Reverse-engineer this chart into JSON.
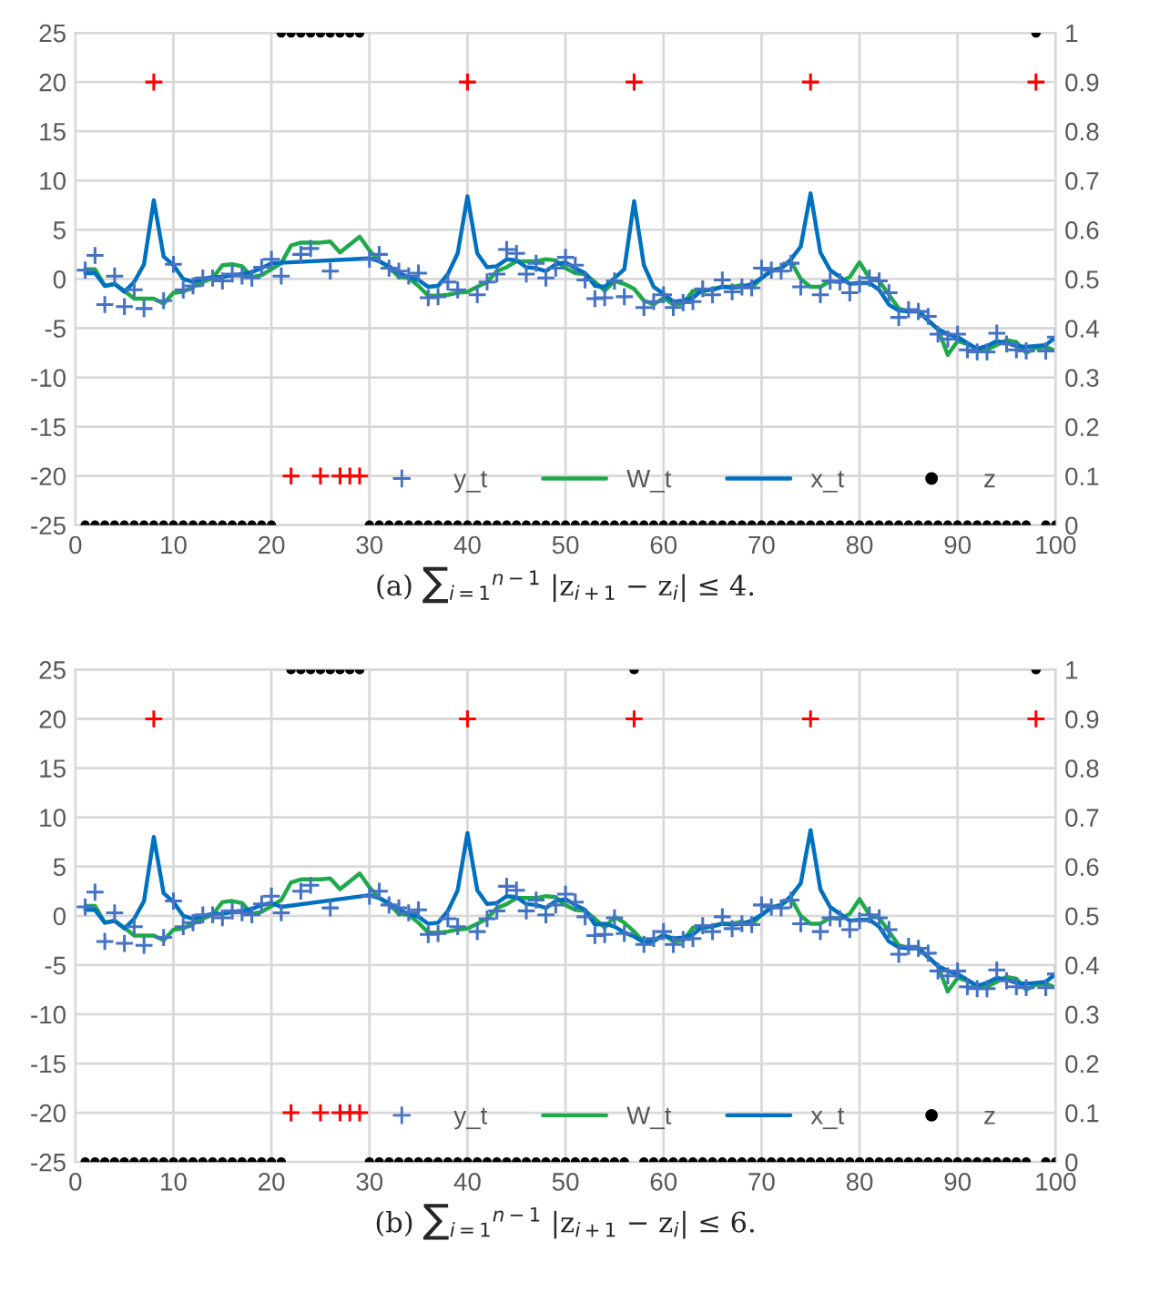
{
  "chart_data": [
    {
      "type": "line",
      "title": "(a) ∑$_{i=1}$$^{n−1}$ |z$_{i+1}$ − z$_{i}$| ≤ 4.",
      "x": [
        1,
        2,
        3,
        4,
        5,
        6,
        7,
        8,
        9,
        10,
        11,
        12,
        13,
        14,
        15,
        16,
        17,
        18,
        19,
        20,
        21,
        22,
        23,
        24,
        25,
        26,
        27,
        28,
        29,
        30,
        31,
        32,
        33,
        34,
        35,
        36,
        37,
        38,
        39,
        40,
        41,
        42,
        43,
        44,
        45,
        46,
        47,
        48,
        49,
        50,
        51,
        52,
        53,
        54,
        55,
        56,
        57,
        58,
        59,
        60,
        61,
        62,
        63,
        64,
        65,
        66,
        67,
        68,
        69,
        70,
        71,
        72,
        73,
        74,
        75,
        76,
        77,
        78,
        79,
        80,
        81,
        82,
        83,
        84,
        85,
        86,
        87,
        88,
        89,
        90,
        91,
        92,
        93,
        94,
        95,
        96,
        97,
        98,
        99,
        100
      ],
      "xlim": [
        0,
        100
      ],
      "xticks": [
        0,
        10,
        20,
        30,
        40,
        50,
        60,
        70,
        80,
        90,
        100
      ],
      "ylim": [
        -25,
        25
      ],
      "yticks": [
        -25,
        -20,
        -15,
        -10,
        -5,
        0,
        5,
        10,
        15,
        20,
        25
      ],
      "y2lim": [
        0,
        1
      ],
      "y2ticks": [
        0,
        0.1,
        0.2,
        0.3,
        0.4,
        0.5,
        0.6,
        0.7,
        0.8,
        0.9,
        1
      ],
      "grid": true,
      "legend": "bottom",
      "series": [
        {
          "name": "y_t",
          "type": "scatter",
          "marker": "cross",
          "color": "#4472c4",
          "values": [
            0.9,
            2.4,
            -2.6,
            0.3,
            -2.8,
            -1.1,
            -3.0,
            null,
            -2.2,
            1.5,
            -1.1,
            -0.7,
            0.1,
            0.1,
            -0.2,
            0.5,
            0.3,
            0.1,
            1.2,
            2.0,
            0.3,
            null,
            2.5,
            3.1,
            null,
            0.8,
            null,
            null,
            null,
            2.0,
            2.5,
            1.1,
            0.8,
            0.3,
            0.6,
            -1.9,
            -1.8,
            -0.3,
            -1.1,
            null,
            -1.6,
            -0.3,
            0.5,
            3.0,
            2.6,
            0.5,
            1.6,
            0.1,
            1.1,
            2.2,
            1.4,
            -0.1,
            -2.0,
            -1.9,
            -0.2,
            -1.8,
            null,
            -2.9,
            -2.3,
            -1.6,
            -2.9,
            -2.4,
            -2.3,
            -1.0,
            -1.6,
            -0.1,
            -1.3,
            -0.8,
            -0.9,
            1.1,
            0.9,
            0.8,
            1.6,
            -0.8,
            null,
            -1.6,
            -0.2,
            -0.3,
            -1.4,
            -0.5,
            0.1,
            -0.2,
            -1.4,
            -3.9,
            -3.1,
            -3.3,
            -3.8,
            -5.6,
            -6.1,
            -5.6,
            -7.2,
            -7.4,
            -7.4,
            -5.5,
            -6.6,
            -7.2,
            -7.3,
            null,
            -7.3,
            -5.9
          ]
        },
        {
          "name": "W_t",
          "color": "#1faa4a",
          "values": [
            1.0,
            1.0,
            -0.7,
            -0.5,
            -1.2,
            -2.0,
            -2.0,
            -2.0,
            -2.5,
            -1.4,
            -1.3,
            -0.8,
            -0.3,
            0.1,
            1.4,
            1.5,
            1.3,
            0.2,
            0.4,
            1.0,
            1.6,
            3.4,
            3.7,
            3.7,
            3.7,
            3.8,
            2.7,
            3.5,
            4.3,
            2.9,
            1.8,
            1.2,
            0.2,
            0.1,
            -0.7,
            -1.7,
            -1.7,
            -1.6,
            -1.4,
            -1.3,
            -0.8,
            -0.3,
            0.8,
            1.2,
            1.8,
            1.8,
            1.8,
            2.0,
            1.9,
            1.1,
            0.6,
            0.5,
            -0.3,
            -1.2,
            -0.2,
            -0.5,
            -1.0,
            -2.2,
            -2.6,
            -1.9,
            -2.6,
            -2.5,
            -1.2,
            -1.3,
            -1.0,
            -0.8,
            -0.8,
            -0.6,
            -0.9,
            0.1,
            0.9,
            1.1,
            1.8,
            0.0,
            -0.8,
            -0.8,
            -0.2,
            -0.3,
            0.2,
            1.7,
            0.1,
            -0.2,
            -1.6,
            -3.0,
            -3.3,
            -3.2,
            -4.2,
            -5.1,
            -7.7,
            -6.3,
            -6.6,
            -7.1,
            -7.2,
            -6.7,
            -6.2,
            -6.4,
            -7.5,
            -7.0,
            -6.9,
            -7.3
          ]
        },
        {
          "name": "x_t",
          "color": "#0070c0",
          "values": [
            0.6,
            0.6,
            -0.7,
            -0.5,
            -1.3,
            -0.3,
            1.5,
            8.0,
            2.3,
            1.4,
            0.0,
            -0.3,
            0.0,
            0.2,
            0.2,
            0.4,
            0.5,
            0.7,
            1.1,
            1.6,
            null,
            null,
            null,
            null,
            null,
            null,
            null,
            null,
            null,
            2.1,
            1.8,
            1.3,
            0.6,
            0.2,
            -0.1,
            -0.8,
            -0.7,
            0.5,
            2.6,
            8.4,
            2.6,
            1.2,
            1.3,
            2.0,
            1.9,
            1.2,
            1.1,
            0.8,
            1.5,
            1.7,
            1.1,
            0.6,
            -0.7,
            -0.8,
            0.1,
            1.0,
            7.9,
            1.4,
            -0.8,
            -1.5,
            -2.3,
            -2.2,
            -1.9,
            -1.1,
            -1.1,
            -0.8,
            -0.9,
            -0.8,
            -0.5,
            0.1,
            0.8,
            1.1,
            2.0,
            3.3,
            8.7,
            2.7,
            0.9,
            0.2,
            -0.5,
            -0.4,
            -0.4,
            -1.1,
            -2.6,
            -3.2,
            -3.3,
            -3.3,
            -4.2,
            -5.1,
            -5.6,
            -5.9,
            -6.5,
            -7.1,
            -6.8,
            -6.3,
            -6.5,
            -6.8,
            -6.9,
            -6.8,
            -6.7,
            -5.9
          ]
        },
        {
          "name": "z",
          "type": "scatter",
          "marker": "circle",
          "axis": "y2",
          "color": "#000000",
          "values": [
            0,
            0,
            0,
            0,
            0,
            0,
            0,
            0,
            0,
            0,
            0,
            0,
            0,
            0,
            0,
            0,
            0,
            0,
            0,
            0,
            1,
            1,
            1,
            1,
            1,
            1,
            1,
            1,
            1,
            0,
            0,
            0,
            0,
            0,
            0,
            0,
            0,
            0,
            0,
            0,
            0,
            0,
            0,
            0,
            0,
            0,
            0,
            0,
            0,
            0,
            0,
            0,
            0,
            0,
            0,
            0,
            0,
            0,
            0,
            0,
            0,
            0,
            0,
            0,
            0,
            0,
            0,
            0,
            0,
            0,
            0,
            0,
            0,
            0,
            0,
            0,
            0,
            0,
            0,
            0,
            0,
            0,
            0,
            0,
            0,
            0,
            0,
            0,
            0,
            0,
            0,
            0,
            0,
            0,
            0,
            0,
            0,
            1,
            0,
            0
          ]
        },
        {
          "type": "scatter",
          "marker": "cross",
          "color": "#ff0000",
          "x": [
            8,
            22,
            25,
            27,
            28,
            29,
            40,
            57,
            75,
            98
          ],
          "values": [
            20,
            -20,
            -20,
            -20,
            -20,
            -20,
            20,
            20,
            20,
            20
          ]
        }
      ]
    },
    {
      "type": "line",
      "title": "(b) ∑$_{i=1}$$^{n−1}$ |z$_{i+1}$ − z$_{i}$| ≤ 6.",
      "x": [
        1,
        2,
        3,
        4,
        5,
        6,
        7,
        8,
        9,
        10,
        11,
        12,
        13,
        14,
        15,
        16,
        17,
        18,
        19,
        20,
        21,
        22,
        23,
        24,
        25,
        26,
        27,
        28,
        29,
        30,
        31,
        32,
        33,
        34,
        35,
        36,
        37,
        38,
        39,
        40,
        41,
        42,
        43,
        44,
        45,
        46,
        47,
        48,
        49,
        50,
        51,
        52,
        53,
        54,
        55,
        56,
        57,
        58,
        59,
        60,
        61,
        62,
        63,
        64,
        65,
        66,
        67,
        68,
        69,
        70,
        71,
        72,
        73,
        74,
        75,
        76,
        77,
        78,
        79,
        80,
        81,
        82,
        83,
        84,
        85,
        86,
        87,
        88,
        89,
        90,
        91,
        92,
        93,
        94,
        95,
        96,
        97,
        98,
        99,
        100
      ],
      "xlim": [
        0,
        100
      ],
      "xticks": [
        0,
        10,
        20,
        30,
        40,
        50,
        60,
        70,
        80,
        90,
        100
      ],
      "ylim": [
        -25,
        25
      ],
      "yticks": [
        -25,
        -20,
        -15,
        -10,
        -5,
        0,
        5,
        10,
        15,
        20,
        25
      ],
      "y2lim": [
        0,
        1
      ],
      "y2ticks": [
        0,
        0.1,
        0.2,
        0.3,
        0.4,
        0.5,
        0.6,
        0.7,
        0.8,
        0.9,
        1
      ],
      "grid": true,
      "legend": "bottom",
      "series": [
        {
          "name": "y_t",
          "type": "scatter",
          "marker": "cross",
          "color": "#4472c4",
          "values": [
            0.9,
            2.4,
            -2.6,
            0.3,
            -2.8,
            -1.1,
            -3.0,
            null,
            -2.2,
            1.5,
            -1.1,
            -0.7,
            0.1,
            0.1,
            -0.2,
            0.5,
            0.3,
            0.1,
            1.2,
            2.0,
            0.3,
            null,
            2.5,
            3.1,
            null,
            0.8,
            null,
            null,
            null,
            2.0,
            2.5,
            1.1,
            0.8,
            0.3,
            0.6,
            -1.9,
            -1.8,
            -0.3,
            -1.1,
            null,
            -1.6,
            -0.3,
            0.5,
            3.0,
            2.6,
            0.5,
            1.6,
            0.1,
            1.1,
            2.2,
            1.4,
            -0.1,
            -2.0,
            -1.9,
            -0.2,
            -1.8,
            null,
            -2.9,
            -2.3,
            -1.6,
            -2.9,
            -2.4,
            -2.3,
            -1.0,
            -1.6,
            -0.1,
            -1.3,
            -0.8,
            -0.9,
            1.1,
            0.9,
            0.8,
            1.6,
            -0.8,
            null,
            -1.6,
            -0.2,
            -0.3,
            -1.4,
            -0.5,
            0.1,
            -0.2,
            -1.4,
            -3.9,
            -3.1,
            -3.3,
            -3.8,
            -5.6,
            -6.1,
            -5.6,
            -7.2,
            -7.4,
            -7.4,
            -5.5,
            -6.6,
            -7.2,
            -7.3,
            null,
            -7.3,
            -5.9
          ]
        },
        {
          "name": "W_t",
          "color": "#1faa4a",
          "values": [
            1.0,
            1.0,
            -0.7,
            -0.5,
            -1.2,
            -2.0,
            -2.0,
            -2.0,
            -2.5,
            -1.4,
            -1.3,
            -0.8,
            -0.3,
            0.1,
            1.4,
            1.5,
            1.3,
            0.2,
            0.4,
            1.0,
            1.6,
            3.4,
            3.7,
            3.7,
            3.7,
            3.8,
            2.7,
            3.5,
            4.3,
            2.9,
            1.8,
            1.2,
            0.2,
            0.1,
            -0.7,
            -1.7,
            -1.7,
            -1.6,
            -1.4,
            -1.3,
            -0.8,
            -0.3,
            0.8,
            1.2,
            1.8,
            1.8,
            1.8,
            2.0,
            1.9,
            1.1,
            0.6,
            0.5,
            -0.3,
            -1.2,
            -0.1,
            -0.7,
            -1.6,
            -2.7,
            -2.6,
            -1.9,
            -2.6,
            -2.5,
            -1.2,
            -1.3,
            -1.0,
            -0.8,
            -0.8,
            -0.6,
            -0.9,
            0.1,
            0.9,
            1.1,
            1.8,
            0.0,
            -0.8,
            -0.8,
            -0.2,
            -0.3,
            0.2,
            1.7,
            0.1,
            -0.2,
            -1.6,
            -3.0,
            -3.3,
            -3.2,
            -4.2,
            -5.1,
            -7.7,
            -6.3,
            -6.6,
            -7.1,
            -7.2,
            -6.7,
            -6.2,
            -6.4,
            -7.5,
            -7.0,
            -6.9,
            -7.3
          ]
        },
        {
          "name": "x_t",
          "color": "#0070c0",
          "values": [
            0.6,
            0.6,
            -0.7,
            -0.5,
            -1.3,
            -0.3,
            1.5,
            8.0,
            2.3,
            1.4,
            0.0,
            -0.3,
            0.0,
            0.2,
            0.2,
            0.4,
            0.5,
            0.7,
            1.1,
            1.3,
            0.9,
            null,
            null,
            null,
            null,
            null,
            null,
            null,
            null,
            2.1,
            1.8,
            1.3,
            0.6,
            0.2,
            -0.1,
            -0.8,
            -0.7,
            0.5,
            2.6,
            8.4,
            2.6,
            1.2,
            1.3,
            2.0,
            1.9,
            1.2,
            1.1,
            0.8,
            1.5,
            1.7,
            1.1,
            0.6,
            -0.9,
            -0.8,
            -1.1,
            -1.7,
            -2.1,
            -2.7,
            -2.5,
            -2.0,
            -2.3,
            -2.2,
            -1.9,
            -1.1,
            -1.1,
            -0.8,
            -0.9,
            -0.8,
            -0.5,
            0.1,
            0.8,
            1.1,
            2.0,
            3.3,
            8.7,
            2.7,
            0.9,
            0.2,
            -0.5,
            -0.4,
            -0.4,
            -1.1,
            -2.6,
            -3.2,
            -3.3,
            -3.3,
            -4.2,
            -5.1,
            -5.6,
            -5.9,
            -6.5,
            -7.1,
            -6.8,
            -6.3,
            -6.5,
            -6.8,
            -6.9,
            -6.8,
            -6.7,
            -5.9
          ]
        },
        {
          "name": "z",
          "type": "scatter",
          "marker": "circle",
          "axis": "y2",
          "color": "#000000",
          "values": [
            0,
            0,
            0,
            0,
            0,
            0,
            0,
            0,
            0,
            0,
            0,
            0,
            0,
            0,
            0,
            0,
            0,
            0,
            0,
            0,
            0,
            1,
            1,
            1,
            1,
            1,
            1,
            1,
            1,
            0,
            0,
            0,
            0,
            0,
            0,
            0,
            0,
            0,
            0,
            0,
            0,
            0,
            0,
            0,
            0,
            0,
            0,
            0,
            0,
            0,
            0,
            0,
            0,
            0,
            0,
            0,
            1,
            0,
            0,
            0,
            0,
            0,
            0,
            0,
            0,
            0,
            0,
            0,
            0,
            0,
            0,
            0,
            0,
            0,
            0,
            0,
            0,
            0,
            0,
            0,
            0,
            0,
            0,
            0,
            0,
            0,
            0,
            0,
            0,
            0,
            0,
            0,
            0,
            0,
            0,
            0,
            0,
            1,
            0,
            0
          ]
        },
        {
          "type": "scatter",
          "marker": "cross",
          "color": "#ff0000",
          "x": [
            8,
            22,
            25,
            27,
            28,
            29,
            40,
            57,
            75,
            98
          ],
          "values": [
            20,
            -20,
            -20,
            -20,
            -20,
            -20,
            20,
            20,
            20,
            20
          ]
        }
      ]
    }
  ]
}
